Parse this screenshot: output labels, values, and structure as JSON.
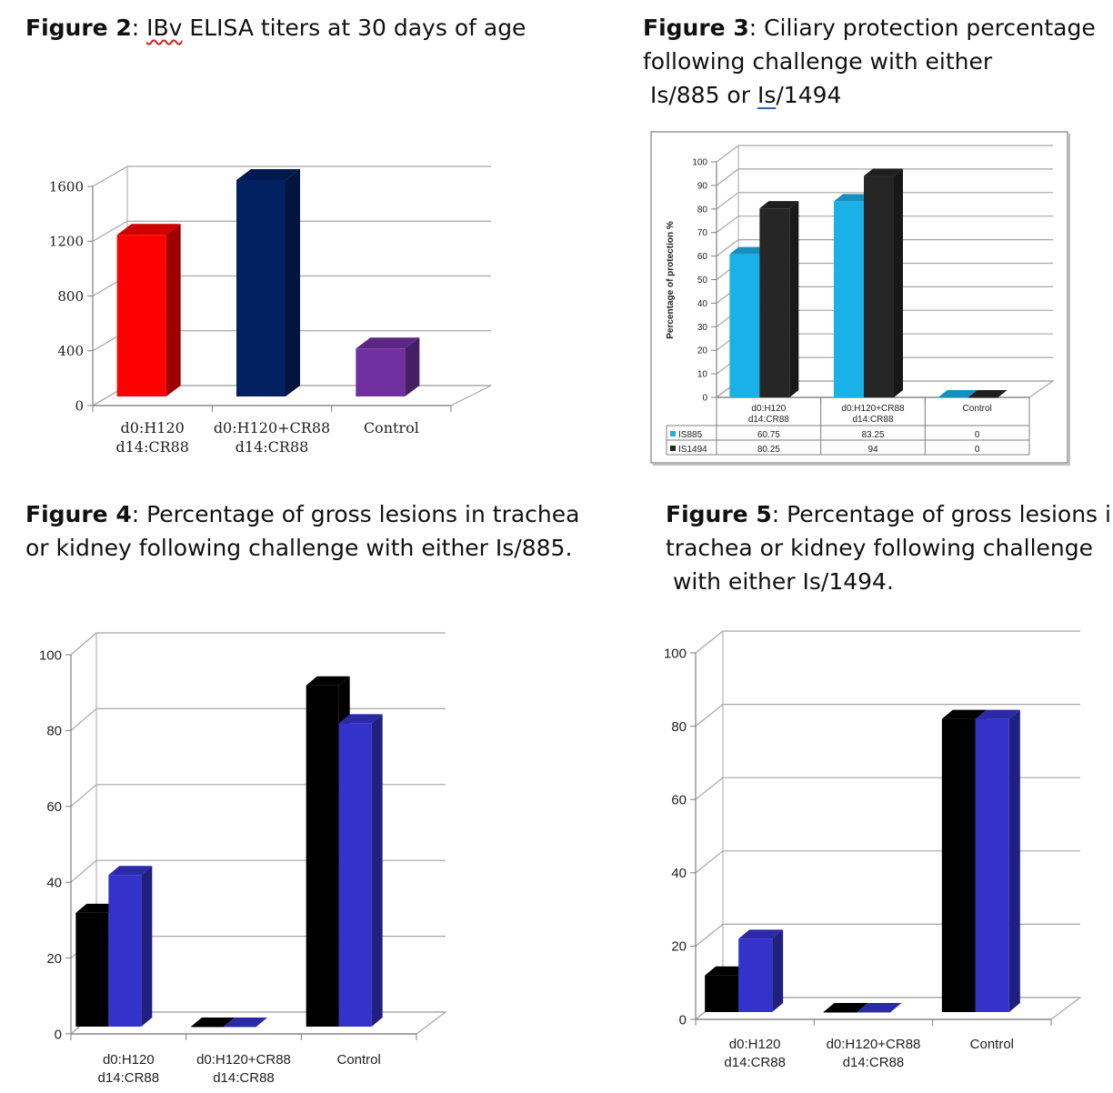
{
  "captions": {
    "fig2": {
      "label": "Figure 2",
      "pre": ": ",
      "marked": "IBv",
      "post": " ELISA titers at 30 days of age"
    },
    "fig3": {
      "label": "Figure 3",
      "line1": ": Ciliary protection percentage",
      "line2": "following challenge with either",
      "line3_pre": " Is/885 or ",
      "line3_marked": "Is",
      "line3_post": "/1494"
    },
    "fig4": {
      "label": "Figure 4",
      "line1": ": Percentage of gross lesions in trachea",
      "line2": "or kidney following challenge with either Is/885."
    },
    "fig5": {
      "label": "Figure 5",
      "line1": ": Percentage of gross lesions in",
      "line2": "trachea or kidney following challenge",
      "line3": " with either Is/1494."
    }
  },
  "chart_data": [
    {
      "id": "fig2",
      "type": "bar",
      "title": "",
      "categories": [
        [
          "d0:H120",
          "d14:CR88"
        ],
        [
          "d0:H120+CR88",
          "d14:CR88"
        ],
        [
          "Control"
        ]
      ],
      "ylim": [
        0,
        1600
      ],
      "yticks": [
        "0",
        "400",
        "800",
        "1200",
        "1600"
      ],
      "values": [
        1180,
        1580,
        350
      ],
      "colors": [
        "#ff0000",
        "#002060",
        "#7030a0"
      ],
      "grid": true,
      "legend": "none"
    },
    {
      "id": "fig3",
      "type": "bar",
      "title": "",
      "ylabel": "Percentage of protection %",
      "categories": [
        [
          "d0:H120",
          "d14:CR88"
        ],
        [
          "d0:H120+CR88",
          "d14:CR88"
        ],
        [
          "Control"
        ]
      ],
      "ylim": [
        0,
        100
      ],
      "yticks": [
        "0",
        "10",
        "20",
        "30",
        "40",
        "50",
        "60",
        "70",
        "80",
        "90",
        "100"
      ],
      "series": [
        {
          "name": "IS885",
          "values": [
            60.75,
            83.25,
            0
          ],
          "labels": [
            "60.75",
            "83.25",
            "0"
          ],
          "color": "#1ab0e8"
        },
        {
          "name": "IS1494",
          "values": [
            80.25,
            94,
            0
          ],
          "labels": [
            "80.25",
            "94",
            "0"
          ],
          "color": "#262626"
        }
      ],
      "grid": true,
      "legend": "data table below chart"
    },
    {
      "id": "fig4",
      "type": "bar",
      "title": "",
      "categories": [
        [
          "d0:H120",
          "d14:CR88"
        ],
        [
          "d0:H120+CR88",
          "d14:CR88"
        ],
        [
          "Control"
        ]
      ],
      "ylim": [
        0,
        100
      ],
      "yticks": [
        "0",
        "20",
        "40",
        "60",
        "80",
        "100"
      ],
      "series": [
        {
          "values": [
            30,
            0,
            90
          ],
          "color": "#000000"
        },
        {
          "values": [
            40,
            0,
            80
          ],
          "color": "#3333cc"
        }
      ],
      "grid": true,
      "legend": "none"
    },
    {
      "id": "fig5",
      "type": "bar",
      "title": "",
      "categories": [
        [
          "d0:H120",
          "d14:CR88"
        ],
        [
          "d0:H120+CR88",
          "d14:CR88"
        ],
        [
          "Control"
        ]
      ],
      "ylim": [
        0,
        100
      ],
      "yticks": [
        "0",
        "20",
        "40",
        "60",
        "80",
        "100"
      ],
      "series": [
        {
          "values": [
            10,
            0,
            80
          ],
          "color": "#000000"
        },
        {
          "values": [
            20,
            0,
            80
          ],
          "color": "#3333cc"
        }
      ],
      "grid": true,
      "legend": "none"
    }
  ]
}
